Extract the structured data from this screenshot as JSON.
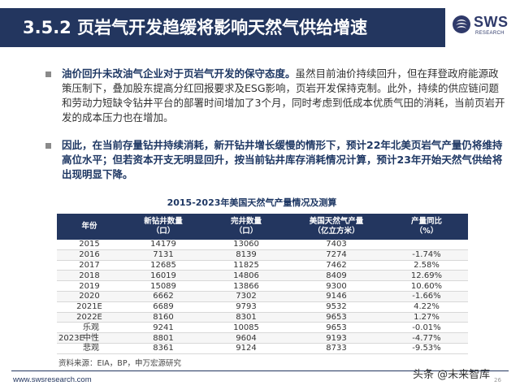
{
  "header": {
    "title": "3.5.2 页岩气开发趋缓将影响天然气供给增速"
  },
  "logo": {
    "name": "SWS",
    "subtitle": "RESEARCH"
  },
  "bullets": [
    {
      "lead": "油价回升未改油气企业对于页岩气开发的保守态度。",
      "body": "虽然目前油价持续回升，但在拜登政府能源政策压制下，叠加股东提高分红回报要求及ESG影响，页岩开发保持克制。此外，持续的供应链问题和劳动力短缺令钻井平台的部署时间增加了3个月，同时考虑到低成本优质气田的消耗，当前页岩开发的成本压力也在增加。"
    },
    {
      "text": "因此，在当前存量钻井持续消耗，新开钻井增长缓慢的情形下，预计22年北美页岩气产量仍将维持高位水平；但若资本开支无明显回升，按当前钻井库存消耗情况计算，预计23年开始天然气供给将出现明显下降。"
    }
  ],
  "table": {
    "title": "2015-2023年美国天然气产量情况及测算",
    "headers": [
      {
        "l1": "年份",
        "l2": ""
      },
      {
        "l1": "新钻井数量",
        "l2": "（口）"
      },
      {
        "l1": "完井数量",
        "l2": "（口）"
      },
      {
        "l1": "美国天然气产量",
        "l2": "（亿立方米）"
      },
      {
        "l1": "产量同比",
        "l2": "（%）"
      }
    ],
    "rows": [
      [
        "2015",
        "14179",
        "13060",
        "7403",
        ""
      ],
      [
        "2016",
        "7131",
        "8139",
        "7274",
        "-1.74%"
      ],
      [
        "2017",
        "12685",
        "11825",
        "7462",
        "2.58%"
      ],
      [
        "2018",
        "16019",
        "14806",
        "8409",
        "12.69%"
      ],
      [
        "2019",
        "15089",
        "13866",
        "9300",
        "10.60%"
      ],
      [
        "2020",
        "6662",
        "7302",
        "9146",
        "-1.66%"
      ],
      [
        "2021E",
        "6689",
        "9793",
        "9532",
        "4.22%"
      ],
      [
        "2022E",
        "8160",
        "8301",
        "9653",
        "1.27%"
      ]
    ],
    "scenario_year": "2023E",
    "scenarios": [
      [
        "乐观",
        "9241",
        "10085",
        "9653",
        "-0.01%"
      ],
      [
        "中性",
        "8801",
        "9604",
        "9193",
        "-4.77%"
      ],
      [
        "悲观",
        "8361",
        "9124",
        "8733",
        "-9.53%"
      ]
    ]
  },
  "source": "资料来源：EIA，BP，申万宏源研究",
  "footer": {
    "url": "www.swsresearch.com",
    "page": "26"
  },
  "watermark": "头条 @未来智库",
  "colors": {
    "navy": "#23365f",
    "text_blue": "#1f3864"
  }
}
